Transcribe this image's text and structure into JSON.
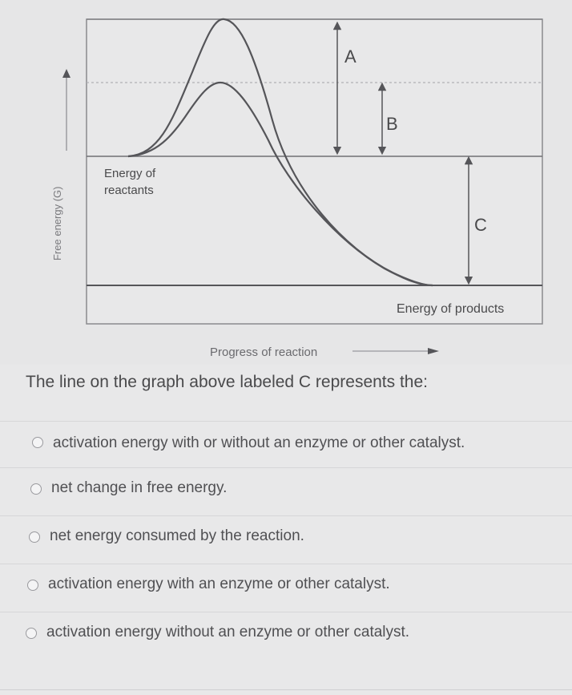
{
  "diagram": {
    "y_axis_label": "Free energy (G)",
    "x_axis_label": "Progress of reaction",
    "reactants_label_line1": "Energy of",
    "reactants_label_line2": "reactants",
    "products_label": "Energy of products",
    "label_a": "A",
    "label_b": "B",
    "label_c": "C",
    "line_color": "#555559",
    "background_color": "#e6e6e7"
  },
  "question": {
    "prompt": "The line on the graph above labeled C represents the:",
    "options": [
      {
        "label": "activation energy with or without an enzyme or other catalyst."
      },
      {
        "label": "net change in free energy."
      },
      {
        "label": "net energy consumed by the reaction."
      },
      {
        "label": "activation energy with an enzyme or other catalyst."
      },
      {
        "label": "activation energy without an enzyme or other catalyst."
      }
    ]
  }
}
